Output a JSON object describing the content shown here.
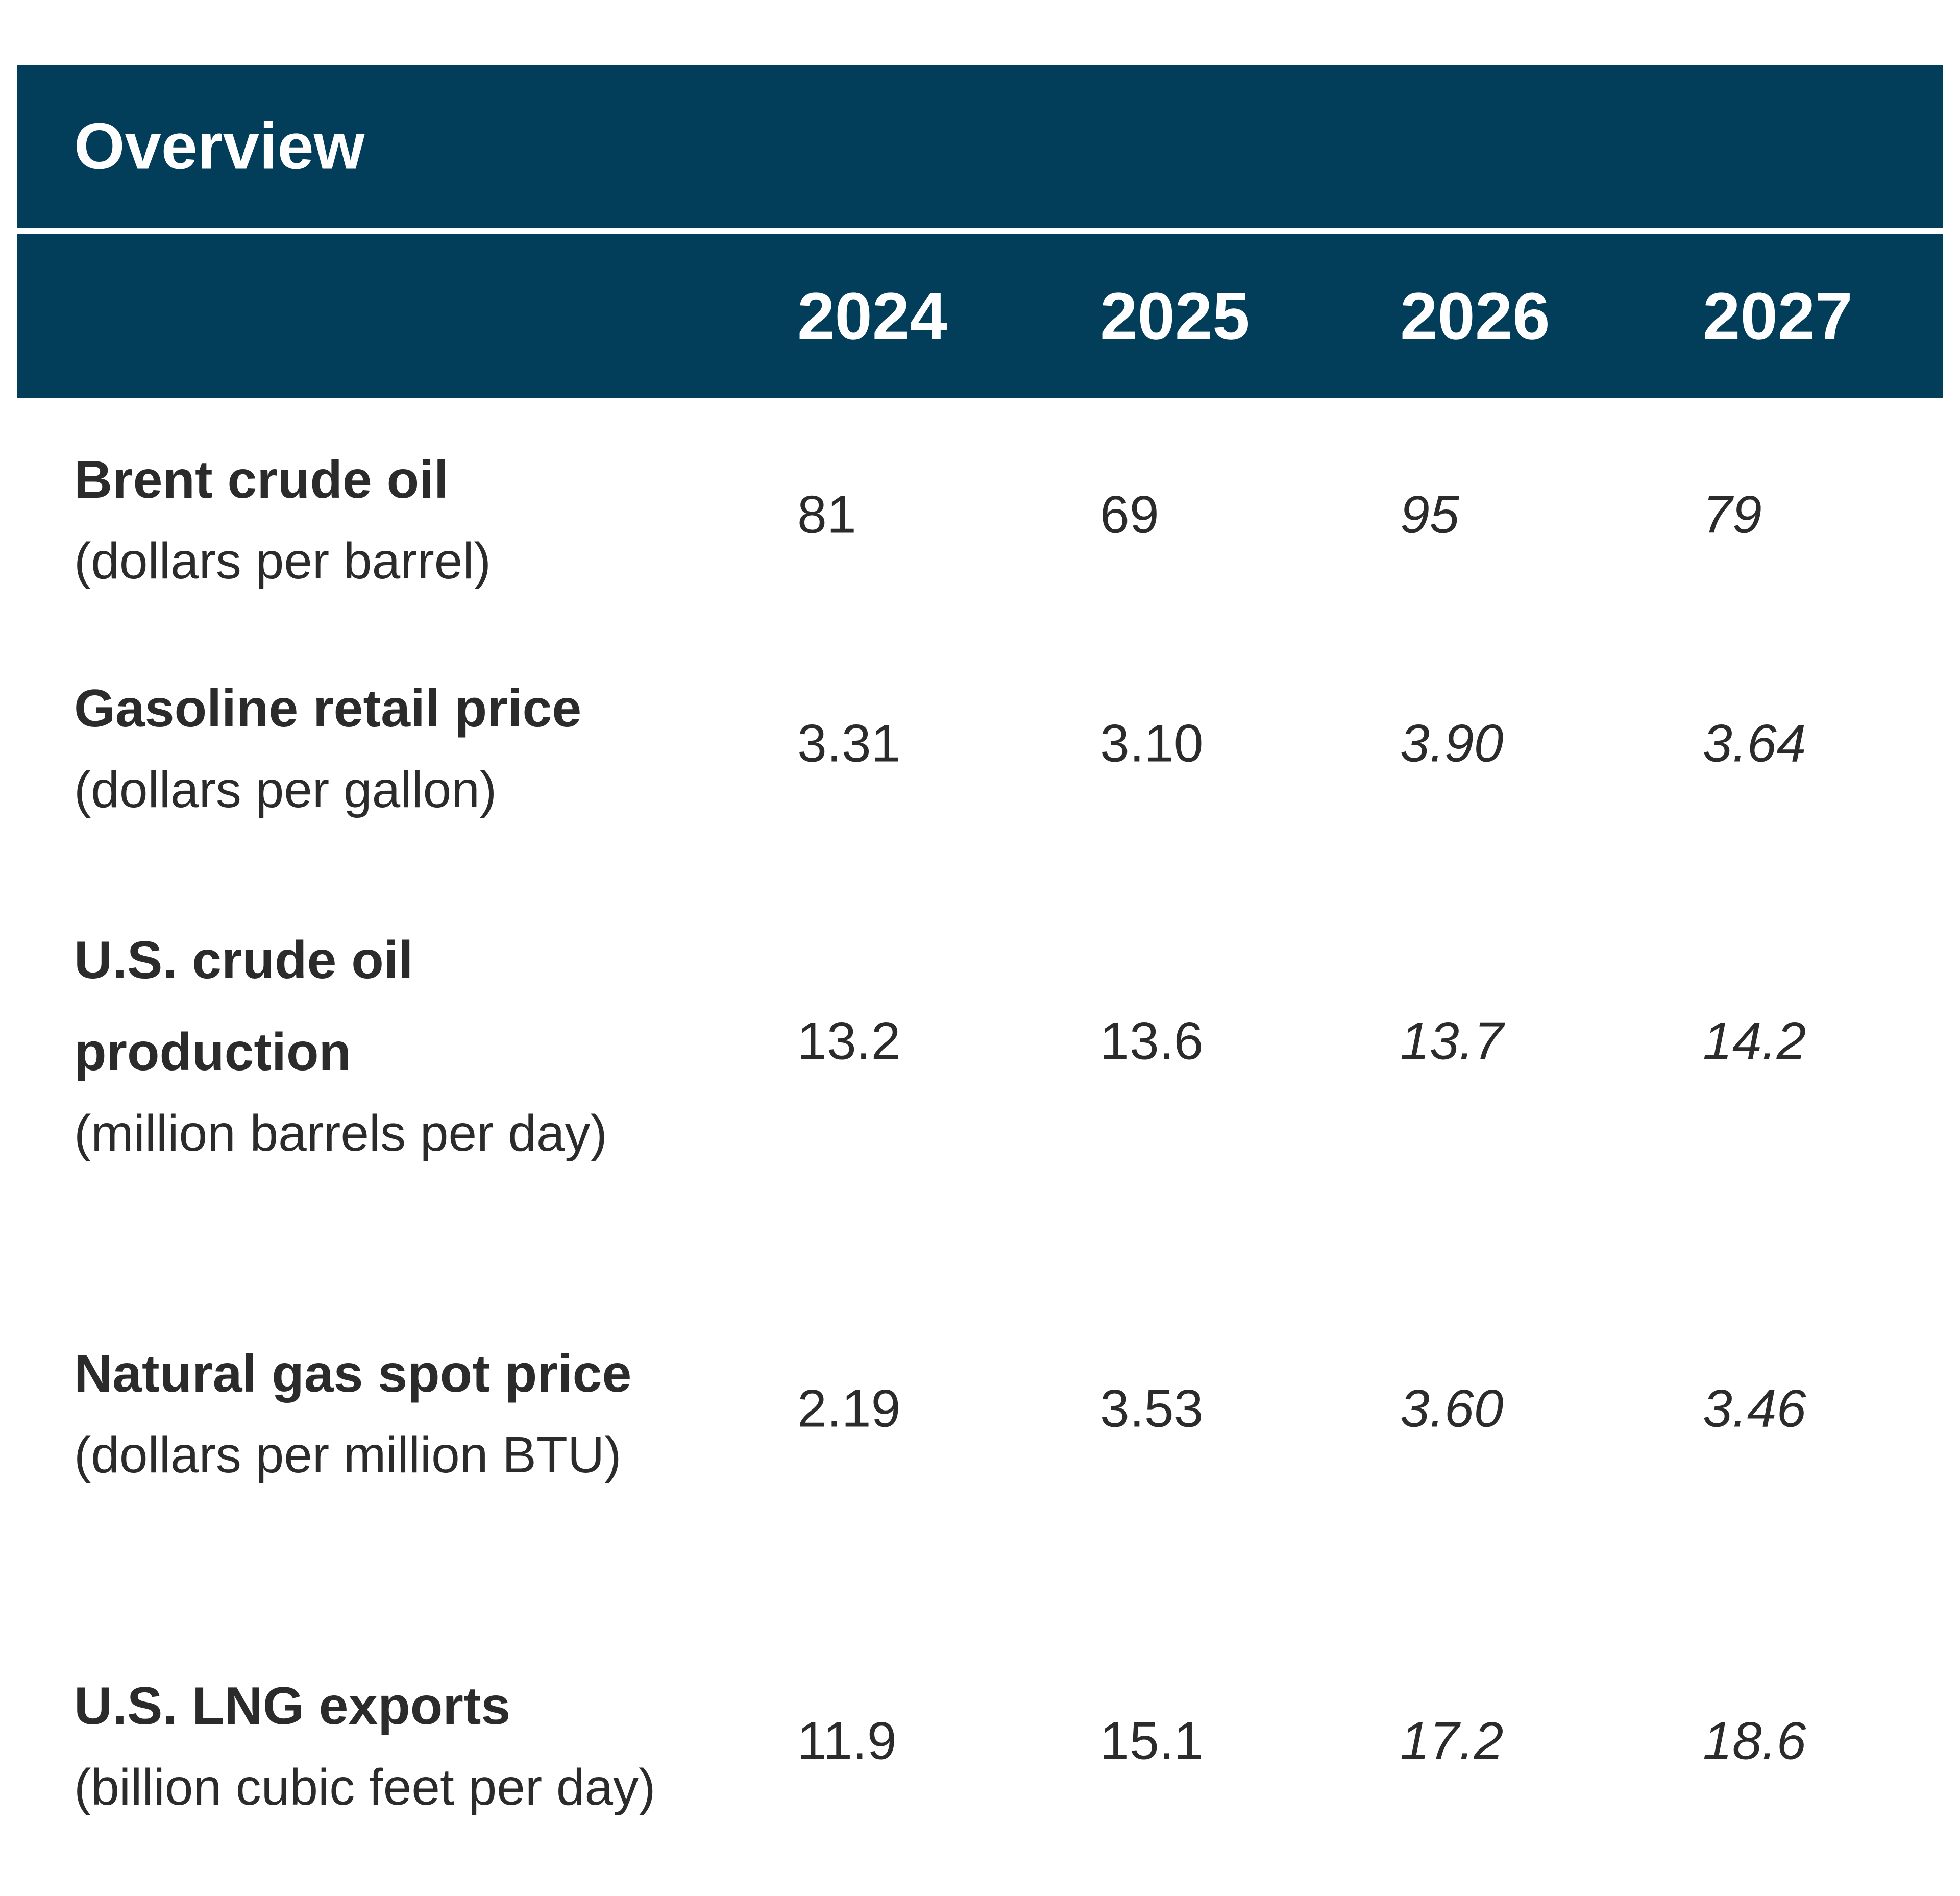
{
  "header": {
    "title": "Overview"
  },
  "table": {
    "columns": [
      "2024",
      "2025",
      "2026",
      "2027"
    ],
    "rows": [
      {
        "label": "Brent crude oil",
        "unit": "(dollars per barrel)",
        "values": [
          "81",
          "69",
          "95",
          "79"
        ]
      },
      {
        "label": "Gasoline retail price",
        "unit": "(dollars per gallon)",
        "values": [
          "3.31",
          "3.10",
          "3.90",
          "3.64"
        ]
      },
      {
        "label": "U.S. crude oil production",
        "unit": "(million barrels per day)",
        "values": [
          "13.2",
          "13.6",
          "13.7",
          "14.2"
        ]
      },
      {
        "label": "Natural gas spot price",
        "unit": "(dollars per million BTU)",
        "values": [
          "2.19",
          "3.53",
          "3.60",
          "3.46"
        ]
      },
      {
        "label": "U.S. LNG exports",
        "unit": "(billion cubic feet per day)",
        "values": [
          "11.9",
          "15.1",
          "17.2",
          "18.6"
        ]
      }
    ]
  }
}
